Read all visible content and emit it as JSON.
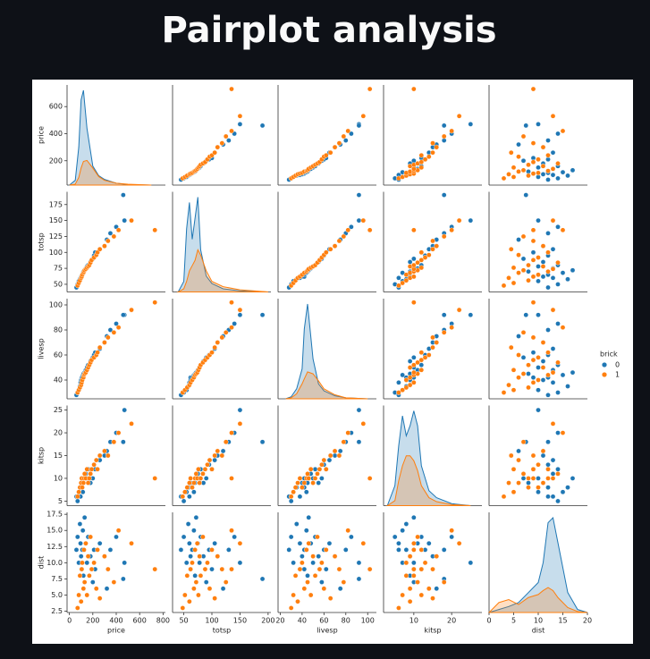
{
  "header": {
    "title": "Pairplot analysis"
  },
  "chart_data": {
    "type": "pairplot",
    "hue_title": "brick",
    "variables": [
      {
        "name": "price",
        "xlim": [
          -20,
          820
        ],
        "ylim": [
          20,
          760
        ],
        "xticks": [
          0,
          200,
          400,
          600,
          800
        ],
        "yticks": [
          200,
          400,
          600
        ],
        "grid": [
          0,
          50,
          80,
          100,
          120,
          150,
          200,
          250,
          300,
          400,
          500,
          700
        ]
      },
      {
        "name": "totsp",
        "xlim": [
          30,
          205
        ],
        "ylim": [
          38,
          195
        ],
        "xticks": [
          50,
          100,
          150,
          200
        ],
        "yticks": [
          50,
          75,
          100,
          125,
          150,
          175
        ],
        "grid": [
          40,
          50,
          55,
          60,
          65,
          70,
          75,
          80,
          90,
          100,
          120,
          150,
          200
        ]
      },
      {
        "name": "livesp",
        "xlim": [
          18,
          108
        ],
        "ylim": [
          25,
          105
        ],
        "xticks": [
          20,
          40,
          60,
          80,
          100
        ],
        "yticks": [
          40,
          60,
          80,
          100
        ],
        "grid": [
          25,
          30,
          35,
          40,
          42,
          45,
          50,
          55,
          60,
          70,
          80,
          100
        ]
      },
      {
        "name": "kitsp",
        "xlim": [
          2,
          28
        ],
        "ylim": [
          4,
          26
        ],
        "xticks": [
          10,
          20
        ],
        "yticks": [
          5,
          10,
          15,
          20,
          25
        ],
        "grid": [
          3,
          5,
          6,
          7,
          8,
          9,
          10,
          11,
          12,
          14,
          16,
          20,
          25
        ]
      },
      {
        "name": "dist",
        "xlim": [
          0,
          20
        ],
        "ylim": [
          2.3,
          17.8
        ],
        "xticks": [
          0,
          5,
          10,
          15,
          20
        ],
        "yticks": [
          {
            "value": 2.5,
            "label": "2.5"
          },
          {
            "value": 5,
            "label": "5.0"
          },
          {
            "value": 7.5,
            "label": "7.5"
          },
          {
            "value": 10,
            "label": "10.0"
          },
          {
            "value": 12.5,
            "label": "12.5"
          },
          {
            "value": 15,
            "label": "15.0"
          },
          {
            "value": 17.5,
            "label": "17.5"
          }
        ],
        "grid": [
          0,
          2,
          4,
          6,
          8,
          10,
          11,
          12,
          13,
          14,
          16,
          18,
          20
        ]
      }
    ],
    "series": [
      {
        "name": "0",
        "color": "#1f77b4",
        "data": {
          "price": [
            60,
            70,
            80,
            90,
            95,
            100,
            105,
            110,
            115,
            120,
            130,
            140,
            150,
            160,
            180,
            200,
            210,
            220,
            260,
            300,
            320,
            350,
            400,
            470,
            460
          ],
          "totsp": [
            45,
            50,
            55,
            58,
            60,
            62,
            62,
            65,
            68,
            70,
            72,
            75,
            78,
            80,
            85,
            90,
            95,
            100,
            105,
            110,
            120,
            130,
            140,
            150,
            190
          ],
          "livesp": [
            28,
            30,
            32,
            35,
            38,
            40,
            42,
            42,
            44,
            45,
            46,
            48,
            50,
            52,
            55,
            58,
            60,
            62,
            65,
            70,
            75,
            80,
            85,
            92,
            92
          ],
          "kitsp": [
            6,
            5,
            7,
            8,
            6,
            9,
            10,
            8,
            7,
            9,
            10,
            11,
            10,
            12,
            9,
            10,
            13,
            12,
            14,
            15,
            16,
            18,
            20,
            25,
            18
          ],
          "dist": [
            12,
            14,
            10,
            16,
            13,
            11,
            9,
            12,
            15,
            8,
            17,
            13,
            10,
            14,
            11,
            7,
            12,
            9,
            13,
            11,
            6,
            12,
            14,
            10,
            7.5
          ]
        },
        "density": {
          "price": [
            0,
            0.5,
            4,
            9,
            10,
            6,
            2,
            1,
            0.6,
            0.2,
            0.05,
            0
          ],
          "totsp": [
            0,
            1,
            6,
            8.5,
            5,
            7,
            9,
            4,
            1.5,
            0.8,
            0.3,
            0.1,
            0
          ],
          "livesp": [
            0,
            0.2,
            1,
            3,
            7,
            9.5,
            4,
            1.5,
            0.8,
            0.3,
            0.1,
            0
          ],
          "kitsp": [
            0,
            2,
            6,
            9,
            7,
            8,
            9.5,
            8,
            4,
            1.5,
            0.8,
            0.2,
            0
          ],
          "dist": [
            0,
            0.3,
            0.6,
            1,
            2,
            3,
            5,
            9,
            9.5,
            7,
            2,
            0.3,
            0
          ]
        }
      },
      {
        "name": "1",
        "color": "#ff7f0e",
        "data": {
          "price": [
            70,
            80,
            90,
            100,
            105,
            110,
            120,
            125,
            130,
            140,
            150,
            160,
            170,
            180,
            190,
            210,
            230,
            240,
            260,
            300,
            330,
            380,
            420,
            530,
            730
          ],
          "totsp": [
            48,
            52,
            56,
            60,
            62,
            65,
            68,
            70,
            72,
            74,
            76,
            78,
            80,
            84,
            88,
            92,
            96,
            100,
            105,
            110,
            118,
            125,
            135,
            150,
            135
          ],
          "livesp": [
            30,
            32,
            34,
            36,
            38,
            40,
            42,
            44,
            45,
            46,
            48,
            50,
            52,
            54,
            56,
            58,
            60,
            62,
            66,
            70,
            74,
            78,
            82,
            96,
            102
          ],
          "kitsp": [
            6,
            7,
            8,
            9,
            10,
            8,
            9,
            10,
            11,
            10,
            12,
            9,
            10,
            11,
            12,
            13,
            14,
            12,
            15,
            16,
            15,
            18,
            20,
            22,
            10
          ],
          "dist": [
            3,
            5,
            8,
            4,
            9,
            10,
            6,
            12,
            7,
            13,
            5,
            11,
            8,
            14,
            9,
            10,
            6,
            12,
            4.5,
            11,
            9,
            7,
            15,
            13,
            9
          ]
        },
        "density": {
          "price": [
            0,
            0.1,
            0.8,
            1.8,
            2.5,
            2.6,
            1.8,
            0.9,
            0.5,
            0.2,
            0.1,
            0
          ],
          "totsp": [
            0,
            0.3,
            1,
            2,
            2.5,
            3,
            4,
            3.5,
            2,
            1,
            0.5,
            0.2,
            0
          ],
          "livesp": [
            0,
            0.1,
            0.5,
            1.5,
            2,
            2.7,
            2.5,
            1.8,
            1,
            0.4,
            0.1,
            0
          ],
          "kitsp": [
            0,
            0.5,
            2.5,
            4,
            5,
            5,
            4.5,
            3.5,
            2,
            0.8,
            0.4,
            0.1,
            0
          ],
          "dist": [
            0,
            1,
            1.3,
            0.8,
            1.5,
            1.8,
            2.2,
            2.5,
            2.2,
            1.5,
            0.5,
            0.1,
            0
          ]
        }
      }
    ]
  }
}
